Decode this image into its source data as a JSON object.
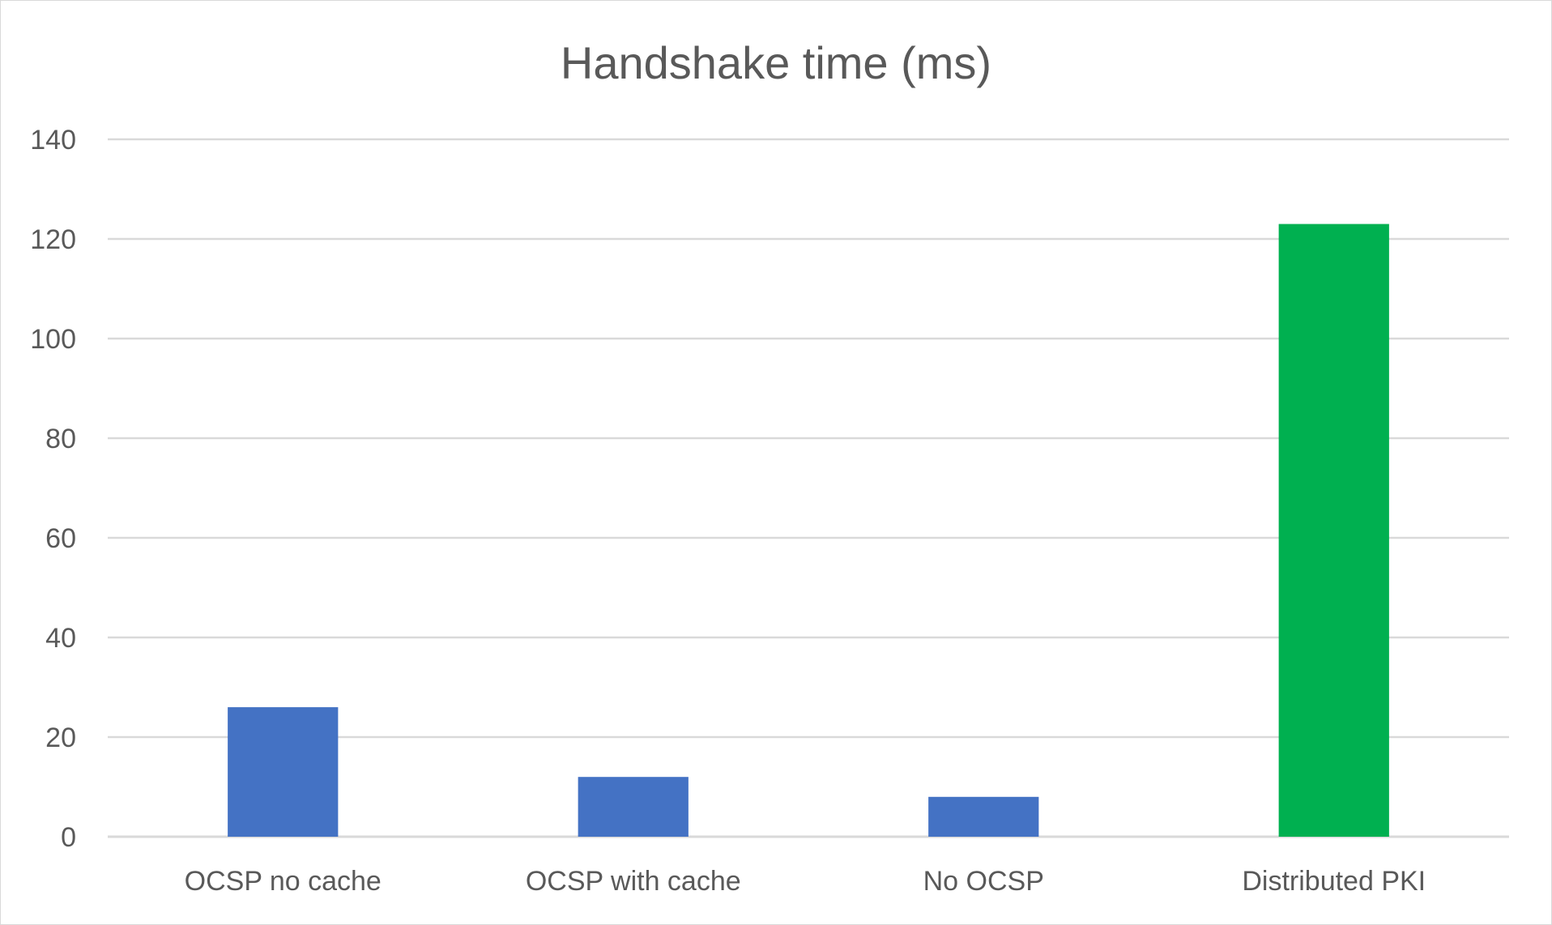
{
  "chart_data": {
    "type": "bar",
    "title": "Handshake time (ms)",
    "xlabel": "",
    "ylabel": "",
    "categories": [
      "OCSP no cache",
      "OCSP with cache",
      "No OCSP",
      "Distributed PKI"
    ],
    "values": [
      26,
      12,
      8,
      123
    ],
    "bar_colors": [
      "#4472C4",
      "#4472C4",
      "#4472C4",
      "#00B050"
    ],
    "ylim": [
      0,
      140
    ],
    "yticks": [
      "0",
      "20",
      "40",
      "60",
      "80",
      "100",
      "120",
      "140"
    ],
    "grid": true,
    "gridline_color": "#d9d9d9",
    "legend": "none"
  }
}
